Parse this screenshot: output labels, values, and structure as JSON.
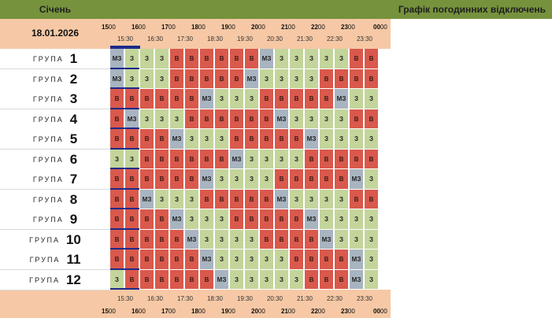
{
  "header": {
    "month": "Січень",
    "title": "Графік погодинних відключень"
  },
  "date": "18.01.2026",
  "hours": [
    {
      "h": "15",
      "m": "00"
    },
    {
      "h": "16",
      "m": "00"
    },
    {
      "h": "17",
      "m": "00"
    },
    {
      "h": "18",
      "m": "00"
    },
    {
      "h": "19",
      "m": "00"
    },
    {
      "h": "20",
      "m": "00"
    },
    {
      "h": "21",
      "m": "00"
    },
    {
      "h": "22",
      "m": "00"
    },
    {
      "h": "23",
      "m": "00"
    },
    {
      "h": "00",
      "m": "00"
    }
  ],
  "half_hours": [
    "15:30",
    "16:30",
    "17:30",
    "18:30",
    "19:30",
    "20:30",
    "21:30",
    "22:30",
    "23:30"
  ],
  "group_word": "ГРУПА",
  "legend_codes": {
    "on": "З",
    "off": "В",
    "maybe": "МЗ"
  },
  "status_colors": {
    "on": "#c3d59b",
    "off": "#d9594c",
    "maybe": "#a8b4c0"
  },
  "groups": [
    {
      "number": "1",
      "slots": [
        "МЗ",
        "З",
        "З",
        "З",
        "В",
        "В",
        "В",
        "В",
        "В",
        "В",
        "МЗ",
        "З",
        "З",
        "З",
        "З",
        "З",
        "В",
        "В"
      ]
    },
    {
      "number": "2",
      "slots": [
        "МЗ",
        "З",
        "З",
        "З",
        "В",
        "В",
        "В",
        "В",
        "В",
        "МЗ",
        "З",
        "З",
        "З",
        "З",
        "В",
        "В",
        "В",
        "В"
      ]
    },
    {
      "number": "3",
      "slots": [
        "В",
        "В",
        "В",
        "В",
        "В",
        "В",
        "МЗ",
        "З",
        "З",
        "З",
        "В",
        "В",
        "В",
        "В",
        "В",
        "МЗ",
        "З",
        "З"
      ]
    },
    {
      "number": "4",
      "slots": [
        "В",
        "МЗ",
        "З",
        "З",
        "З",
        "В",
        "В",
        "В",
        "В",
        "В",
        "В",
        "МЗ",
        "З",
        "З",
        "З",
        "З",
        "В",
        "В"
      ]
    },
    {
      "number": "5",
      "slots": [
        "В",
        "В",
        "В",
        "В",
        "МЗ",
        "З",
        "З",
        "З",
        "В",
        "В",
        "В",
        "В",
        "В",
        "МЗ",
        "З",
        "З",
        "З",
        "З"
      ]
    },
    {
      "number": "6",
      "slots": [
        "З",
        "З",
        "В",
        "В",
        "В",
        "В",
        "В",
        "В",
        "МЗ",
        "З",
        "З",
        "З",
        "З",
        "В",
        "В",
        "В",
        "В",
        "В"
      ]
    },
    {
      "number": "7",
      "slots": [
        "В",
        "В",
        "В",
        "В",
        "В",
        "В",
        "МЗ",
        "З",
        "З",
        "З",
        "З",
        "В",
        "В",
        "В",
        "В",
        "В",
        "МЗ",
        "З"
      ]
    },
    {
      "number": "8",
      "slots": [
        "В",
        "В",
        "МЗ",
        "З",
        "З",
        "З",
        "В",
        "В",
        "В",
        "В",
        "В",
        "МЗ",
        "З",
        "З",
        "З",
        "З",
        "В",
        "В"
      ]
    },
    {
      "number": "9",
      "slots": [
        "В",
        "В",
        "В",
        "В",
        "МЗ",
        "З",
        "З",
        "З",
        "В",
        "В",
        "В",
        "В",
        "В",
        "МЗ",
        "З",
        "З",
        "З",
        "З"
      ]
    },
    {
      "number": "10",
      "slots": [
        "В",
        "В",
        "В",
        "В",
        "В",
        "МЗ",
        "З",
        "З",
        "З",
        "З",
        "В",
        "В",
        "В",
        "В",
        "МЗ",
        "З",
        "З",
        "З"
      ]
    },
    {
      "number": "11",
      "slots": [
        "В",
        "В",
        "В",
        "В",
        "В",
        "В",
        "МЗ",
        "З",
        "З",
        "З",
        "З",
        "З",
        "В",
        "В",
        "В",
        "В",
        "МЗ",
        "З"
      ]
    },
    {
      "number": "12",
      "slots": [
        "З",
        "В",
        "В",
        "В",
        "В",
        "В",
        "В",
        "МЗ",
        "З",
        "З",
        "З",
        "З",
        "З",
        "В",
        "В",
        "В",
        "МЗ",
        "З"
      ]
    }
  ]
}
